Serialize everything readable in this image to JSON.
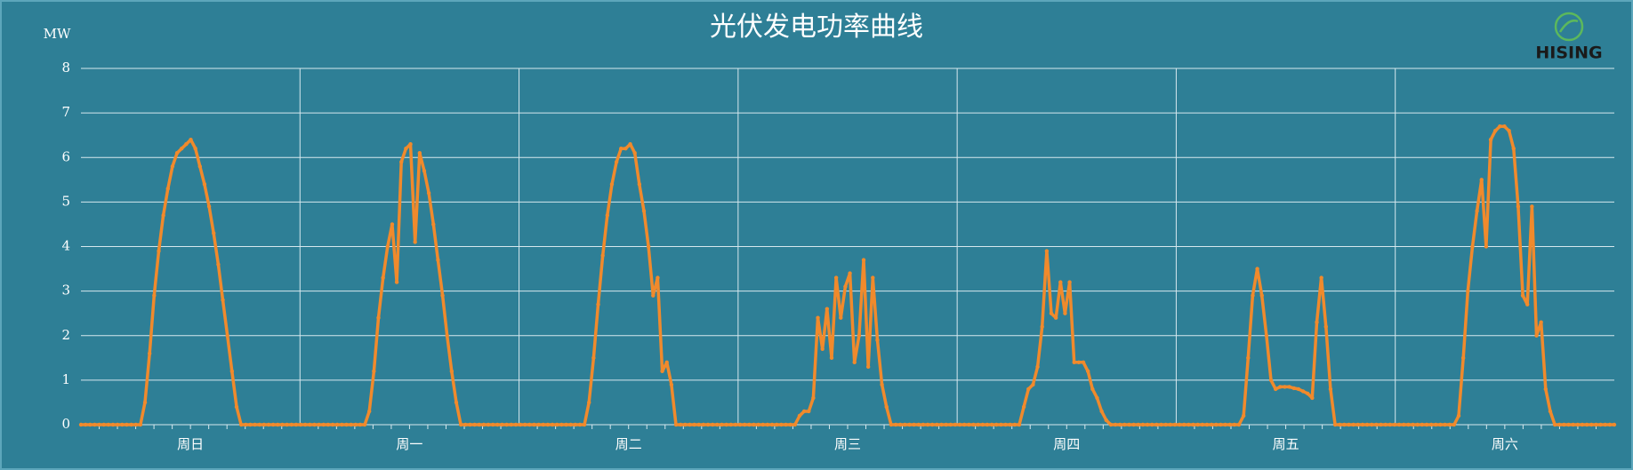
{
  "chart_data": {
    "type": "line",
    "title": "光伏发电功率曲线",
    "y_label": "MW",
    "logo": "HISING",
    "categories": [
      "周日",
      "周一",
      "周二",
      "周三",
      "周四",
      "周五",
      "周六"
    ],
    "series": [
      {
        "color": "#f08a2c",
        "values": [
          [
            0,
            0,
            0,
            0,
            0,
            0,
            0,
            0,
            0,
            0,
            0,
            0,
            0,
            0,
            0.5,
            1.6,
            2.9,
            3.9,
            4.7,
            5.3,
            5.8,
            6.1,
            6.2,
            6.3,
            6.4,
            6.2,
            5.8,
            5.4,
            4.9,
            4.3,
            3.6,
            2.8,
            2.0,
            1.2,
            0.4,
            0,
            0,
            0,
            0,
            0,
            0,
            0,
            0,
            0,
            0,
            0,
            0,
            0
          ],
          [
            0,
            0,
            0,
            0,
            0,
            0,
            0,
            0,
            0,
            0,
            0,
            0,
            0,
            0,
            0,
            0.3,
            1.2,
            2.4,
            3.3,
            4.0,
            4.5,
            3.2,
            5.9,
            6.2,
            6.3,
            4.1,
            6.1,
            5.7,
            5.2,
            4.5,
            3.7,
            2.9,
            2.0,
            1.2,
            0.5,
            0,
            0,
            0,
            0,
            0,
            0,
            0,
            0,
            0,
            0,
            0,
            0,
            0
          ],
          [
            0,
            0,
            0,
            0,
            0,
            0,
            0,
            0,
            0,
            0,
            0,
            0,
            0,
            0,
            0,
            0.5,
            1.5,
            2.7,
            3.8,
            4.7,
            5.4,
            5.9,
            6.2,
            6.2,
            6.3,
            6.1,
            5.4,
            4.8,
            4.0,
            2.9,
            3.3,
            1.2,
            1.4,
            0.9,
            0,
            0,
            0,
            0,
            0,
            0,
            0,
            0,
            0,
            0,
            0,
            0,
            0,
            0
          ],
          [
            0,
            0,
            0,
            0,
            0,
            0,
            0,
            0,
            0,
            0,
            0,
            0,
            0,
            0.2,
            0.3,
            0.3,
            0.6,
            2.4,
            1.7,
            2.6,
            1.5,
            3.3,
            2.4,
            3.1,
            3.4,
            1.4,
            2.0,
            3.7,
            1.3,
            3.3,
            1.9,
            0.9,
            0.4,
            0,
            0,
            0,
            0,
            0,
            0,
            0,
            0,
            0,
            0,
            0,
            0,
            0,
            0,
            0
          ],
          [
            0,
            0,
            0,
            0,
            0,
            0,
            0,
            0,
            0,
            0,
            0,
            0,
            0,
            0,
            0.4,
            0.8,
            0.9,
            1.3,
            2.2,
            3.9,
            2.5,
            2.4,
            3.2,
            2.5,
            3.2,
            1.4,
            1.4,
            1.4,
            1.2,
            0.8,
            0.6,
            0.3,
            0.1,
            0,
            0,
            0,
            0,
            0,
            0,
            0,
            0,
            0,
            0,
            0,
            0,
            0,
            0,
            0
          ],
          [
            0,
            0,
            0,
            0,
            0,
            0,
            0,
            0,
            0,
            0,
            0,
            0,
            0,
            0,
            0.2,
            1.5,
            2.9,
            3.5,
            2.9,
            2.0,
            1.0,
            0.8,
            0.85,
            0.85,
            0.85,
            0.82,
            0.8,
            0.75,
            0.7,
            0.6,
            2.3,
            3.3,
            2.2,
            0.8,
            0,
            0,
            0,
            0,
            0,
            0,
            0,
            0,
            0,
            0,
            0,
            0,
            0,
            0
          ],
          [
            0,
            0,
            0,
            0,
            0,
            0,
            0,
            0,
            0,
            0,
            0,
            0,
            0,
            0.2,
            1.5,
            3.0,
            4.0,
            4.8,
            5.5,
            4.0,
            6.4,
            6.6,
            6.7,
            6.7,
            6.6,
            6.2,
            4.9,
            2.9,
            2.7,
            4.9,
            2.0,
            2.3,
            0.8,
            0.3,
            0,
            0,
            0,
            0,
            0,
            0,
            0,
            0,
            0,
            0,
            0,
            0,
            0,
            0
          ]
        ]
      }
    ],
    "ylim": [
      0,
      8
    ],
    "yticks": [
      0,
      1,
      2,
      3,
      4,
      5,
      6,
      7,
      8
    ],
    "grid": true
  }
}
